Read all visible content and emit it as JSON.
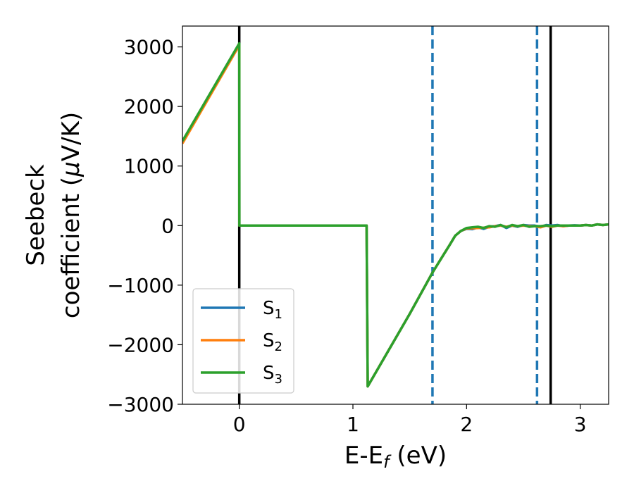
{
  "chart_data": {
    "type": "line",
    "xlabel": "E-E_f (eV)",
    "ylabel_line1": "Seebeck",
    "ylabel_line2": "coefficient  (μV/K)",
    "xlim": [
      -0.5,
      3.25
    ],
    "ylim": [
      -3000,
      3350
    ],
    "x_ticks": [
      0,
      1,
      2,
      3
    ],
    "y_ticks": [
      -3000,
      -2000,
      -1000,
      0,
      1000,
      2000,
      3000
    ],
    "y_tick_labels": [
      "−3000",
      "−2000",
      "−1000",
      "0",
      "1000",
      "2000",
      "3000"
    ],
    "grid": false,
    "legend_placement": "lower-left",
    "vlines": [
      {
        "x": 0.0,
        "style": "solid",
        "color": "#000000"
      },
      {
        "x": 1.7,
        "style": "dashed",
        "color": "#1f77b4"
      },
      {
        "x": 2.62,
        "style": "dashed",
        "color": "#1f77b4"
      },
      {
        "x": 2.74,
        "style": "solid",
        "color": "#000000"
      }
    ],
    "series": [
      {
        "name": "S1",
        "color": "#1f77b4",
        "x": [
          -0.5,
          0.0,
          0.001,
          0.5,
          1.11,
          1.12,
          1.13,
          1.5,
          1.7,
          1.8,
          1.85,
          1.9,
          1.95,
          2.0,
          2.05,
          2.1,
          2.15,
          2.2,
          2.25,
          2.3,
          2.35,
          2.4,
          2.45,
          2.5,
          2.55,
          2.6,
          2.65,
          2.7,
          2.75,
          2.8,
          2.85,
          2.9,
          2.95,
          3.0,
          3.05,
          3.1,
          3.15,
          3.2,
          3.25
        ],
        "y": [
          1400,
          3050,
          0,
          0,
          0,
          0,
          -2700,
          -1480,
          -790,
          -480,
          -330,
          -170,
          -90,
          -55,
          -60,
          -30,
          -55,
          -20,
          -10,
          10,
          -40,
          0,
          -20,
          10,
          0,
          0,
          -20,
          10,
          0,
          10,
          -10,
          0,
          5,
          0,
          10,
          0,
          20,
          10,
          20
        ]
      },
      {
        "name": "S2",
        "color": "#ff7f0e",
        "x": [
          -0.5,
          0.0,
          0.001,
          0.5,
          1.11,
          1.12,
          1.13,
          1.5,
          1.7,
          1.8,
          1.85,
          1.9,
          1.95,
          2.0,
          2.05,
          2.1,
          2.15,
          2.2,
          2.25,
          2.3,
          2.35,
          2.4,
          2.45,
          2.5,
          2.55,
          2.6,
          2.65,
          2.7,
          2.75,
          2.8,
          2.85,
          2.9,
          2.95,
          3.0,
          3.05,
          3.1,
          3.15,
          3.2,
          3.25
        ],
        "y": [
          1380,
          3030,
          0,
          0,
          0,
          0,
          -2700,
          -1480,
          -790,
          -480,
          -330,
          -170,
          -90,
          -50,
          -45,
          -40,
          -35,
          -30,
          -10,
          0,
          -20,
          0,
          -10,
          0,
          -10,
          -10,
          -30,
          0,
          -20,
          0,
          -10,
          0,
          0,
          0,
          10,
          0,
          20,
          10,
          20
        ]
      },
      {
        "name": "S3",
        "color": "#2ca02c",
        "x": [
          -0.5,
          0.0,
          0.001,
          0.5,
          1.11,
          1.12,
          1.13,
          1.5,
          1.7,
          1.8,
          1.85,
          1.9,
          1.95,
          2.0,
          2.05,
          2.1,
          2.15,
          2.2,
          2.25,
          2.3,
          2.35,
          2.4,
          2.45,
          2.5,
          2.55,
          2.6,
          2.65,
          2.7,
          2.75,
          2.8,
          2.85,
          2.9,
          2.95,
          3.0,
          3.05,
          3.1,
          3.15,
          3.2,
          3.25
        ],
        "y": [
          1420,
          3060,
          0,
          0,
          0,
          0,
          -2700,
          -1480,
          -790,
          -480,
          -330,
          -170,
          -90,
          -40,
          -30,
          -20,
          -40,
          -10,
          -20,
          10,
          -30,
          10,
          -10,
          10,
          -20,
          -10,
          -10,
          0,
          -10,
          0,
          0,
          0,
          0,
          0,
          10,
          0,
          20,
          10,
          20
        ]
      }
    ]
  },
  "legend": {
    "s1": {
      "base": "S",
      "sub": "1"
    },
    "s2": {
      "base": "S",
      "sub": "2"
    },
    "s3": {
      "base": "S",
      "sub": "3"
    }
  },
  "xlabel_parts": {
    "a": "E-E",
    "sub": "f",
    "b": " (eV)"
  },
  "ylabel_parts": {
    "l1": "Seebeck",
    "l2a": "coefficient  (",
    "mu": "μ",
    "l2b": "V/K)"
  }
}
